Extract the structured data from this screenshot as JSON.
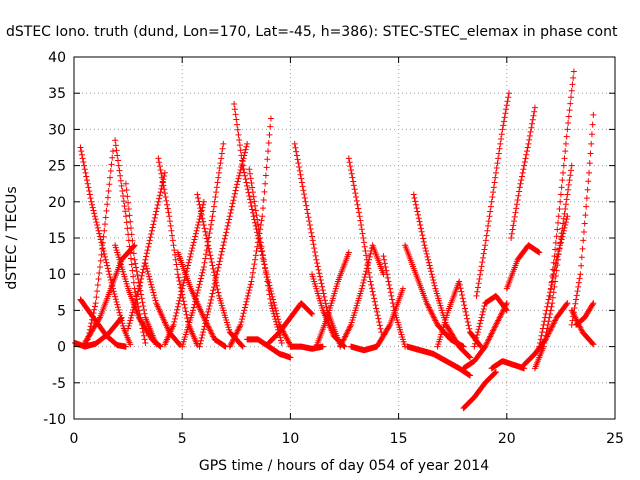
{
  "chart_data": {
    "type": "scatter",
    "title": "dSTEC Iono. truth (dund, Lon=170, Lat=-45, h=386): STEC-STEC_elemax in phase cont",
    "xlabel": "GPS time / hours of day 054 of year 2014",
    "ylabel": "dSTEC  / TECUs",
    "xlim": [
      0,
      25
    ],
    "ylim": [
      -10,
      40
    ],
    "xticks": [
      "0",
      "5",
      "10",
      "15",
      "20",
      "25"
    ],
    "yticks": [
      "-10",
      "-5",
      "0",
      "5",
      "10",
      "15",
      "20",
      "25",
      "30",
      "35",
      "40"
    ],
    "grid": true,
    "marker": "plus",
    "color": "#ff0000",
    "segments": [
      {
        "x": [
          0.05,
          0.5,
          1.0,
          1.6,
          2.2
        ],
        "y": [
          0.5,
          0.0,
          0.4,
          1.8,
          4.0
        ]
      },
      {
        "x": [
          0.3,
          0.8,
          1.3,
          1.8,
          2.3,
          2.6
        ],
        "y": [
          27.5,
          20.0,
          14.0,
          8.0,
          2.5,
          0.3
        ]
      },
      {
        "x": [
          0.3,
          0.9,
          1.5,
          2.0,
          2.4
        ],
        "y": [
          6.5,
          4.0,
          1.5,
          0.2,
          0.0
        ]
      },
      {
        "x": [
          0.5,
          1.2,
          1.7,
          2.2,
          2.8
        ],
        "y": [
          0.5,
          4.0,
          8.0,
          12.0,
          14.0
        ]
      },
      {
        "x": [
          0.6,
          1.0,
          1.4,
          1.8
        ],
        "y": [
          0.5,
          6.0,
          16.0,
          27.0
        ]
      },
      {
        "x": [
          1.9,
          2.4,
          2.8,
          3.3
        ],
        "y": [
          28.5,
          18.0,
          8.0,
          0.5
        ]
      },
      {
        "x": [
          1.9,
          2.5,
          3.0,
          3.6,
          4.0
        ],
        "y": [
          14.0,
          8.0,
          4.0,
          1.0,
          0.0
        ]
      },
      {
        "x": [
          2.4,
          2.8,
          3.3,
          3.8
        ],
        "y": [
          22.5,
          12.0,
          4.0,
          0.3
        ]
      },
      {
        "x": [
          2.5,
          3.0,
          3.6,
          4.2
        ],
        "y": [
          2.5,
          8.0,
          16.0,
          24.0
        ]
      },
      {
        "x": [
          3.3,
          3.8,
          4.4,
          4.9
        ],
        "y": [
          11.5,
          6.0,
          2.0,
          0.2
        ]
      },
      {
        "x": [
          3.9,
          4.4,
          4.8,
          5.3,
          5.7
        ],
        "y": [
          26.0,
          18.0,
          10.0,
          3.0,
          0.2
        ]
      },
      {
        "x": [
          4.2,
          4.6,
          5.0,
          5.5,
          6.0
        ],
        "y": [
          0.3,
          3.0,
          8.0,
          14.0,
          20.0
        ]
      },
      {
        "x": [
          4.8,
          5.4,
          6.0,
          6.5,
          7.0
        ],
        "y": [
          13.0,
          8.0,
          4.0,
          1.0,
          0.0
        ]
      },
      {
        "x": [
          5.0,
          5.5,
          6.0,
          6.4,
          6.9
        ],
        "y": [
          0.0,
          5.0,
          11.0,
          18.0,
          28.0
        ]
      },
      {
        "x": [
          5.7,
          6.2,
          6.7,
          7.2,
          7.8
        ],
        "y": [
          21.0,
          14.0,
          7.0,
          2.0,
          0.0
        ]
      },
      {
        "x": [
          5.8,
          6.3,
          6.9,
          7.5,
          8.0
        ],
        "y": [
          0.0,
          6.0,
          14.0,
          22.0,
          28.0
        ]
      },
      {
        "x": [
          7.4,
          7.8,
          8.3,
          8.9,
          9.5,
          10.0
        ],
        "y": [
          33.5,
          25.0,
          18.0,
          10.0,
          3.0,
          0.2
        ]
      },
      {
        "x": [
          7.2,
          7.7,
          8.2,
          8.7,
          9.1
        ],
        "y": [
          0.0,
          3.0,
          9.0,
          18.0,
          31.5
        ]
      },
      {
        "x": [
          8.1,
          8.6,
          9.1,
          9.6
        ],
        "y": [
          24.5,
          15.0,
          6.0,
          0.5
        ]
      },
      {
        "x": [
          8.0,
          8.5,
          9.0,
          9.5,
          10.0
        ],
        "y": [
          1.0,
          1.0,
          0.0,
          -1.0,
          -1.5
        ]
      },
      {
        "x": [
          9.0,
          9.5,
          10.0,
          10.5,
          11.0
        ],
        "y": [
          0.5,
          2.0,
          4.0,
          6.0,
          4.5
        ]
      },
      {
        "x": [
          10.2,
          10.7,
          11.2,
          11.7,
          12.3
        ],
        "y": [
          28.0,
          20.0,
          12.0,
          5.0,
          0.2
        ]
      },
      {
        "x": [
          10.0,
          10.5,
          11.0,
          11.5
        ],
        "y": [
          0.0,
          0.0,
          -0.3,
          0.0
        ]
      },
      {
        "x": [
          11.0,
          11.5,
          12.0,
          12.5
        ],
        "y": [
          10.0,
          5.0,
          1.5,
          0.0
        ]
      },
      {
        "x": [
          11.2,
          11.7,
          12.2,
          12.7
        ],
        "y": [
          0.0,
          4.0,
          9.0,
          13.0
        ]
      },
      {
        "x": [
          12.7,
          13.2,
          13.7,
          14.2
        ],
        "y": [
          26.0,
          18.0,
          9.0,
          2.0
        ]
      },
      {
        "x": [
          12.3,
          12.8,
          13.3,
          13.8,
          14.3
        ],
        "y": [
          0.0,
          3.0,
          8.0,
          14.0,
          10.0
        ]
      },
      {
        "x": [
          12.8,
          13.4,
          14.0,
          14.6,
          15.2
        ],
        "y": [
          0.0,
          -0.5,
          0.0,
          3.0,
          8.0
        ]
      },
      {
        "x": [
          14.3,
          14.8,
          15.3
        ],
        "y": [
          12.5,
          5.0,
          0.0
        ]
      },
      {
        "x": [
          15.3,
          15.8,
          16.3,
          16.8,
          17.4,
          18.0
        ],
        "y": [
          14.0,
          10.0,
          6.0,
          3.0,
          1.0,
          0.0
        ]
      },
      {
        "x": [
          15.7,
          16.2,
          16.7,
          17.2,
          17.8,
          18.3
        ],
        "y": [
          21.0,
          14.0,
          8.0,
          3.0,
          0.0,
          -1.5
        ]
      },
      {
        "x": [
          15.4,
          16.0,
          16.6,
          17.2,
          17.8,
          18.3
        ],
        "y": [
          0.0,
          -0.5,
          -1.0,
          -2.0,
          -3.0,
          -4.0
        ]
      },
      {
        "x": [
          16.8,
          17.3,
          17.8,
          18.3,
          18.8
        ],
        "y": [
          0.0,
          5.0,
          9.0,
          2.0,
          0.0
        ]
      },
      {
        "x": [
          18.0,
          18.5,
          19.0,
          19.5
        ],
        "y": [
          -8.5,
          -7.0,
          -5.0,
          -3.5
        ]
      },
      {
        "x": [
          18.5,
          19.0,
          19.5,
          20.0
        ],
        "y": [
          0.0,
          6.0,
          7.0,
          5.0
        ]
      },
      {
        "x": [
          18.0,
          18.5,
          19.0,
          19.5,
          20.0
        ],
        "y": [
          -3.0,
          -2.0,
          0.0,
          3.0,
          6.0
        ]
      },
      {
        "x": [
          18.6,
          19.0,
          19.4,
          19.8,
          20.1
        ],
        "y": [
          7.0,
          14.0,
          22.0,
          30.0,
          35.0
        ]
      },
      {
        "x": [
          19.3,
          19.8,
          20.3,
          20.8
        ],
        "y": [
          -3.0,
          -2.0,
          -2.5,
          -3.0
        ]
      },
      {
        "x": [
          20.0,
          20.5,
          21.0,
          21.5
        ],
        "y": [
          8.0,
          12.0,
          14.0,
          13.0
        ]
      },
      {
        "x": [
          20.2,
          20.6,
          21.0,
          21.3
        ],
        "y": [
          15.0,
          22.0,
          28.0,
          33.0
        ]
      },
      {
        "x": [
          20.8,
          21.3,
          21.8,
          22.3,
          22.8
        ],
        "y": [
          -2.5,
          -1.0,
          1.0,
          4.0,
          6.0
        ]
      },
      {
        "x": [
          21.3,
          21.7,
          22.1,
          22.5,
          23.0
        ],
        "y": [
          -3.0,
          0.0,
          6.0,
          15.0,
          25.0
        ]
      },
      {
        "x": [
          21.5,
          21.9,
          22.3,
          22.8
        ],
        "y": [
          0.0,
          6.0,
          12.0,
          18.0
        ]
      },
      {
        "x": [
          22.0,
          22.4,
          22.8,
          23.1
        ],
        "y": [
          7.0,
          18.0,
          30.0,
          38.0
        ]
      },
      {
        "x": [
          23.0,
          23.4,
          23.8,
          24.0
        ],
        "y": [
          3.0,
          10.0,
          24.0,
          32.0
        ]
      },
      {
        "x": [
          23.2,
          23.6,
          24.0
        ],
        "y": [
          3.0,
          4.0,
          6.0
        ]
      },
      {
        "x": [
          23.0,
          23.5,
          24.0
        ],
        "y": [
          5.0,
          2.0,
          0.3
        ]
      }
    ]
  }
}
